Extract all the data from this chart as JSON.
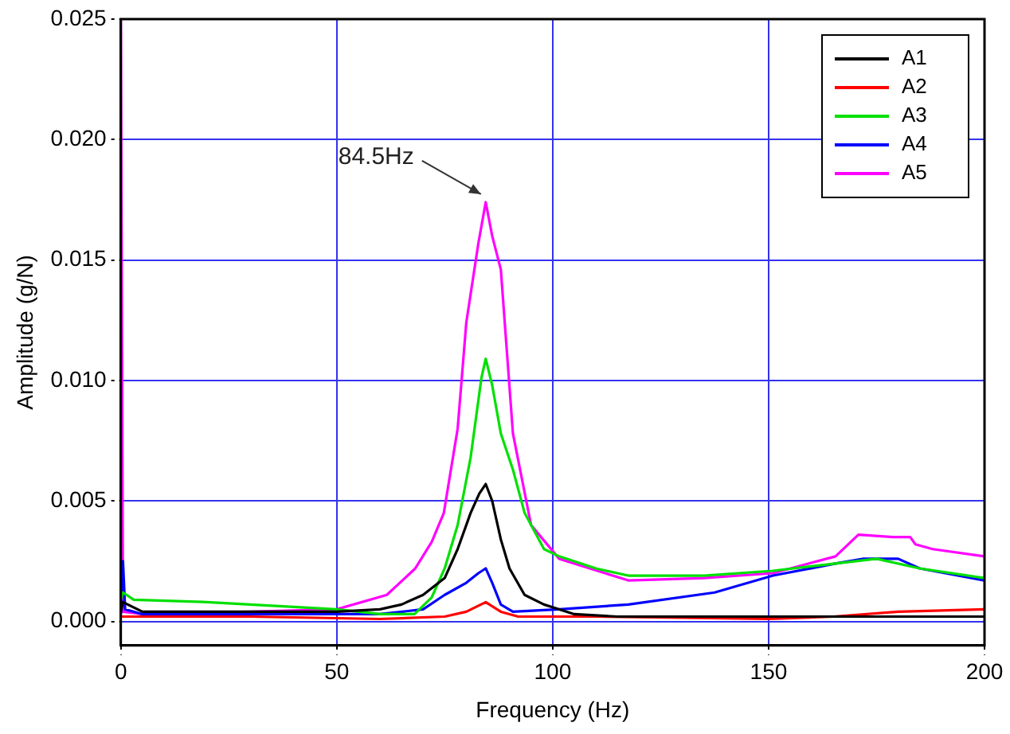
{
  "chart_data": {
    "type": "line",
    "xlabel": "Frequency (Hz)",
    "ylabel": "Amplitude (g/N)",
    "xlim": [
      0,
      200
    ],
    "xticks": [
      0,
      50,
      100,
      150,
      200
    ],
    "ylim": [
      -0.001,
      0.025
    ],
    "yticks": [
      {
        "value": 0,
        "label": "0.000"
      },
      {
        "value": 0.005,
        "label": "0.005"
      },
      {
        "value": 0.01,
        "label": "0.010"
      },
      {
        "value": 0.015,
        "label": "0.015"
      },
      {
        "value": 0.02,
        "label": "0.020"
      },
      {
        "value": 0.025,
        "label": "0.025"
      }
    ],
    "grid": true,
    "legend": "top right",
    "annotations": [
      {
        "text": "84.5Hz",
        "x": 84.5,
        "y": 0.0174
      }
    ],
    "series": [
      {
        "name": "A1",
        "color": "#000000",
        "x": [
          0,
          0.5,
          5,
          20,
          40,
          50,
          60,
          65,
          70,
          75,
          78,
          81,
          83,
          84.5,
          86,
          88,
          90,
          93.5,
          98,
          105,
          115,
          130,
          150,
          170,
          190,
          200
        ],
        "values": [
          0.0004,
          0.0008,
          0.0004,
          0.0004,
          0.0004,
          0.0004,
          0.0005,
          0.0007,
          0.0011,
          0.0018,
          0.003,
          0.0045,
          0.0053,
          0.0057,
          0.005,
          0.0034,
          0.0022,
          0.0011,
          0.0007,
          0.0003,
          0.0002,
          0.0002,
          0.0002,
          0.0002,
          0.0002,
          0.0002
        ]
      },
      {
        "name": "A2",
        "color": "#ff0000",
        "x": [
          0,
          5,
          30,
          60,
          75,
          80,
          84.5,
          88,
          92,
          110,
          150,
          165,
          180,
          200
        ],
        "values": [
          0.0002,
          0.0002,
          0.0002,
          0.0001,
          0.0002,
          0.0004,
          0.0008,
          0.0004,
          0.0002,
          0.0002,
          0.0001,
          0.0002,
          0.0004,
          0.0005
        ]
      },
      {
        "name": "A3",
        "color": "#00e000",
        "x": [
          0,
          0.5,
          3,
          20,
          40,
          50,
          60,
          68,
          72,
          75,
          78,
          81,
          83.5,
          84.5,
          86,
          88,
          90.8,
          93.5,
          98,
          101.5,
          110,
          117.5,
          135,
          151,
          165.5,
          175,
          185,
          200
        ],
        "values": [
          0.0009,
          0.0012,
          0.0009,
          0.0008,
          0.0006,
          0.0005,
          0.0003,
          0.0003,
          0.001,
          0.0022,
          0.004,
          0.0068,
          0.0101,
          0.0109,
          0.0098,
          0.0078,
          0.0063,
          0.0045,
          0.003,
          0.0027,
          0.0022,
          0.0019,
          0.0019,
          0.0021,
          0.0024,
          0.0026,
          0.0022,
          0.0018
        ]
      },
      {
        "name": "A4",
        "color": "#0000ff",
        "x": [
          0,
          0.5,
          1,
          5,
          30,
          60,
          70,
          75,
          80,
          82.8,
          84.5,
          86,
          88,
          90.8,
          101.5,
          117.5,
          137.5,
          151,
          165.5,
          172,
          180,
          185,
          200
        ],
        "values": [
          0.0003,
          0.0025,
          0.0005,
          0.0003,
          0.0003,
          0.0003,
          0.0005,
          0.0011,
          0.0016,
          0.002,
          0.0022,
          0.0016,
          0.0007,
          0.0004,
          0.0005,
          0.0007,
          0.0012,
          0.0019,
          0.0024,
          0.0026,
          0.0026,
          0.0022,
          0.0017
        ]
      },
      {
        "name": "A5",
        "color": "#ff00ff",
        "x": [
          0,
          0,
          0.5,
          5,
          30,
          50,
          61.6,
          68.2,
          72,
          74.8,
          78,
          80,
          82.8,
          84.5,
          86,
          88,
          90.8,
          95,
          101.5,
          117.5,
          135,
          151,
          165.5,
          170.8,
          178.8,
          182.8,
          184,
          188,
          200
        ],
        "values": [
          0.0003,
          0.025,
          0.0004,
          0.0003,
          0.0004,
          0.0005,
          0.0011,
          0.0022,
          0.0033,
          0.0045,
          0.008,
          0.0124,
          0.0157,
          0.0174,
          0.016,
          0.0146,
          0.0078,
          0.004,
          0.0026,
          0.0017,
          0.0018,
          0.002,
          0.0027,
          0.0036,
          0.0035,
          0.0035,
          0.0032,
          0.003,
          0.0027
        ]
      }
    ]
  }
}
